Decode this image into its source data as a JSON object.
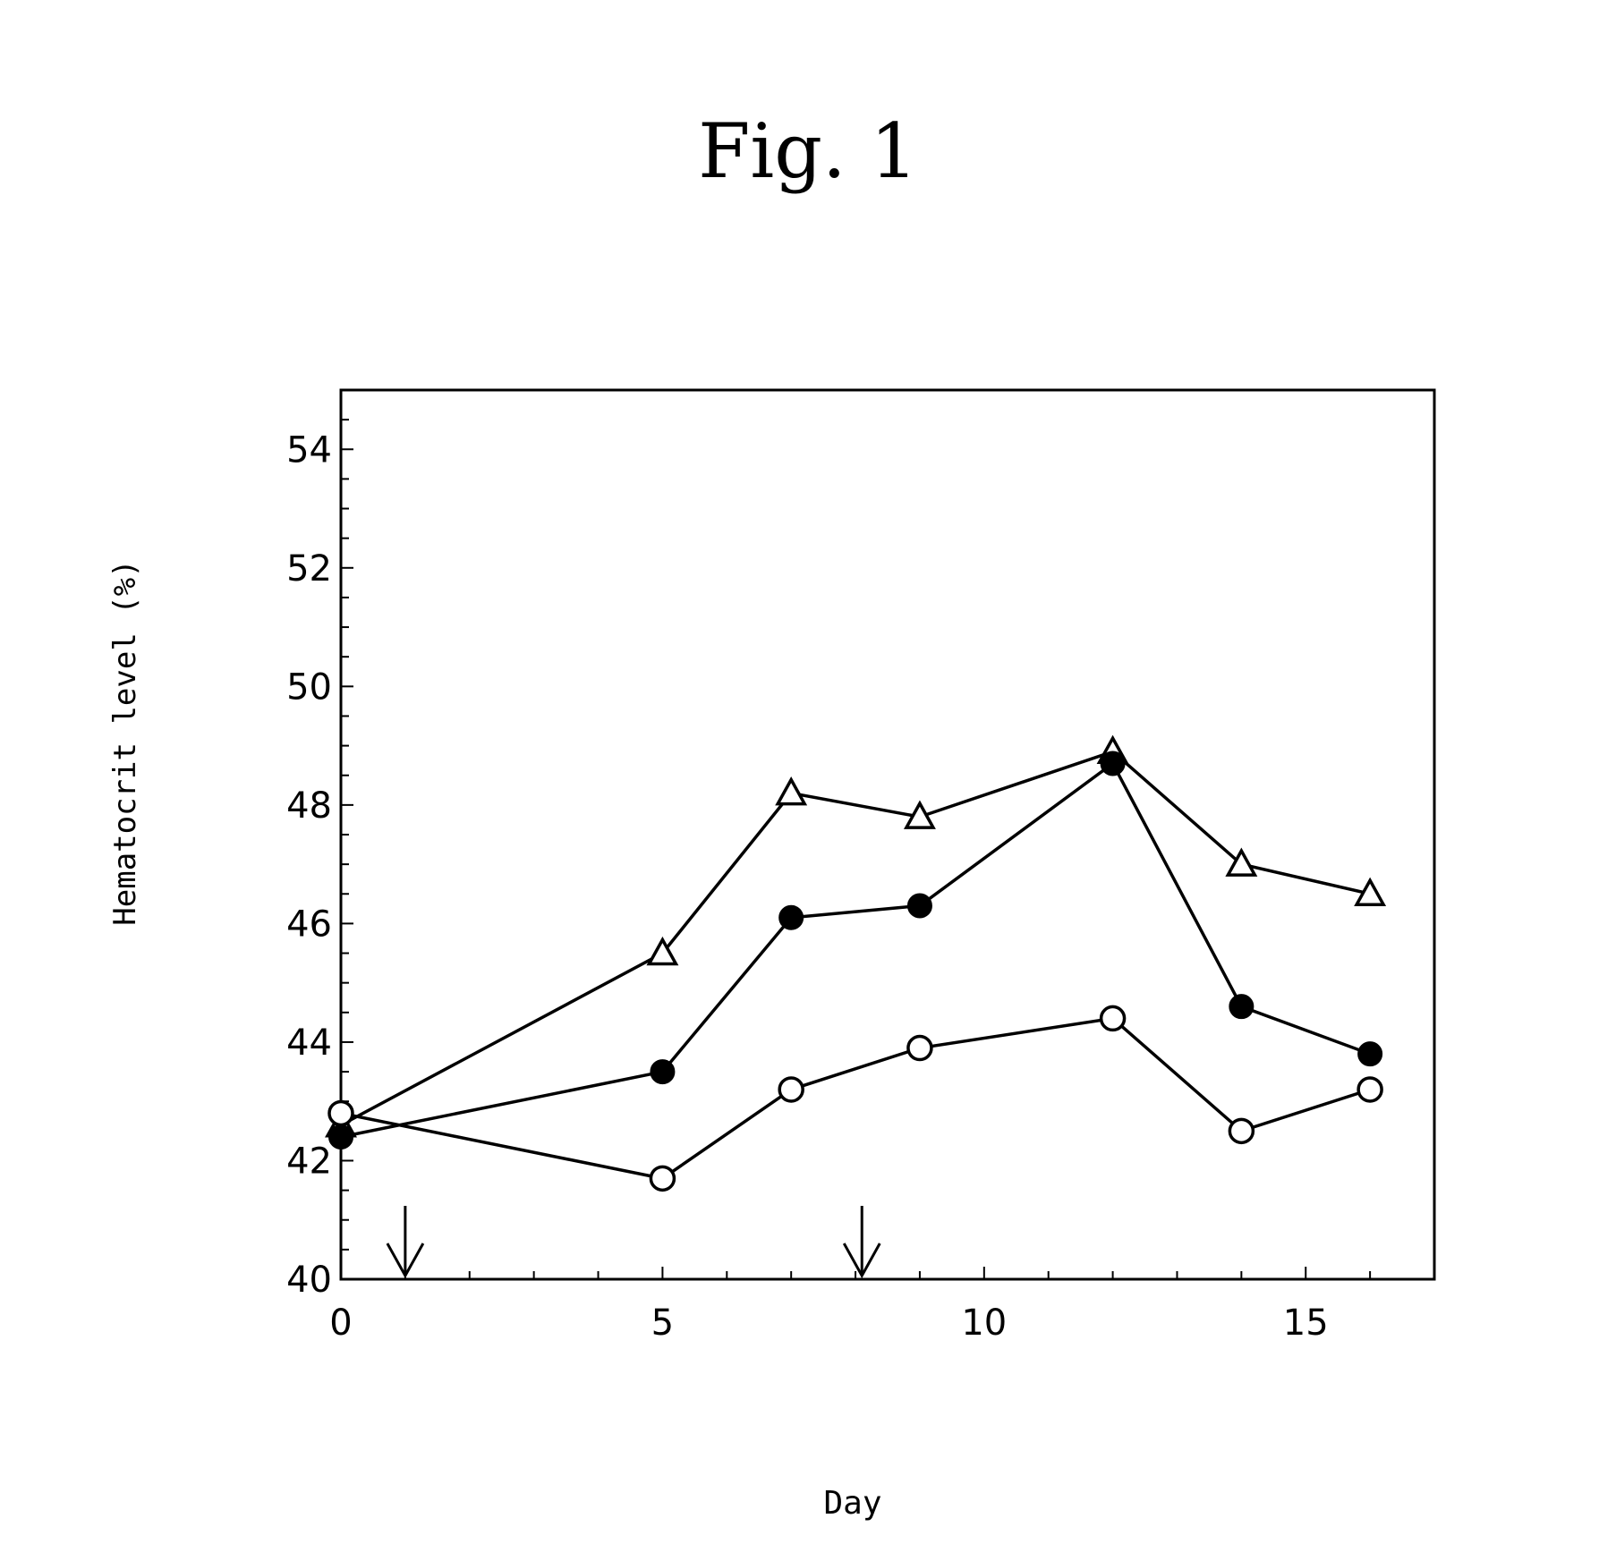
{
  "chart_data": {
    "type": "line",
    "title": "Fig. 1",
    "xlabel": "Day",
    "ylabel": "Hematocrit level (%)",
    "xlim": [
      0,
      17
    ],
    "ylim": [
      40,
      55
    ],
    "x_ticks": [
      0,
      5,
      10,
      15
    ],
    "y_ticks": [
      40,
      42,
      44,
      46,
      48,
      50,
      52,
      54
    ],
    "grid": false,
    "legend": "none",
    "arrows_at_day": [
      1,
      8.1
    ],
    "series": [
      {
        "marker": "open-triangle",
        "x": [
          0,
          5,
          7,
          9,
          12,
          14,
          16
        ],
        "values": [
          42.6,
          45.5,
          48.2,
          47.8,
          48.9,
          47.0,
          46.5
        ]
      },
      {
        "marker": "filled-circle",
        "x": [
          0,
          5,
          7,
          9,
          12,
          14,
          16
        ],
        "values": [
          42.4,
          43.5,
          46.1,
          46.3,
          48.7,
          44.6,
          43.8
        ]
      },
      {
        "marker": "open-circle",
        "x": [
          0,
          5,
          7,
          9,
          12,
          14,
          16
        ],
        "values": [
          42.8,
          41.7,
          43.2,
          43.9,
          44.4,
          42.5,
          43.2
        ]
      }
    ]
  }
}
